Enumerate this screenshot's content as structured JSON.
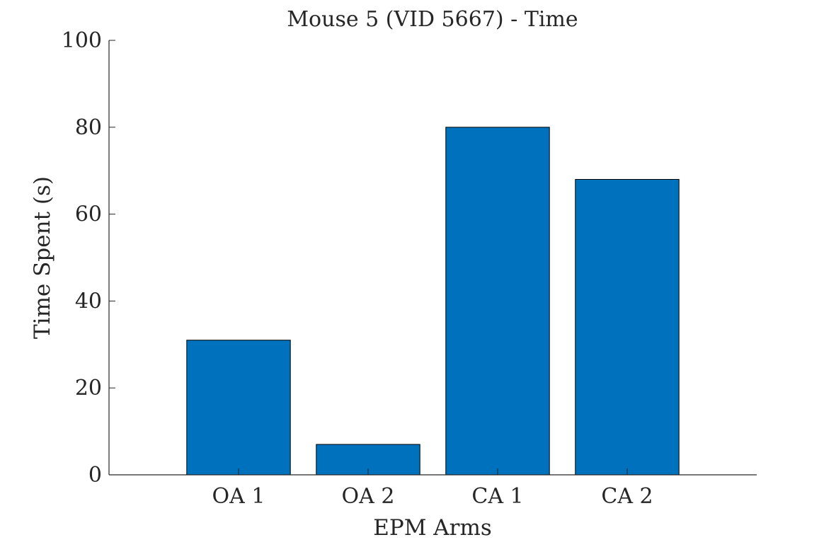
{
  "chart_data": {
    "type": "bar",
    "title": "Mouse 5 (VID 5667) - Time",
    "xlabel": "EPM Arms",
    "ylabel": "Time Spent (s)",
    "categories": [
      "OA 1",
      "OA 2",
      "CA 1",
      "CA 2"
    ],
    "values": [
      31,
      7,
      80,
      68
    ],
    "ylim": [
      0,
      100
    ],
    "yticks": [
      "0",
      "20",
      "40",
      "60",
      "80",
      "100"
    ],
    "grid": false,
    "legend": "none",
    "bar_color": "#0072BD"
  }
}
